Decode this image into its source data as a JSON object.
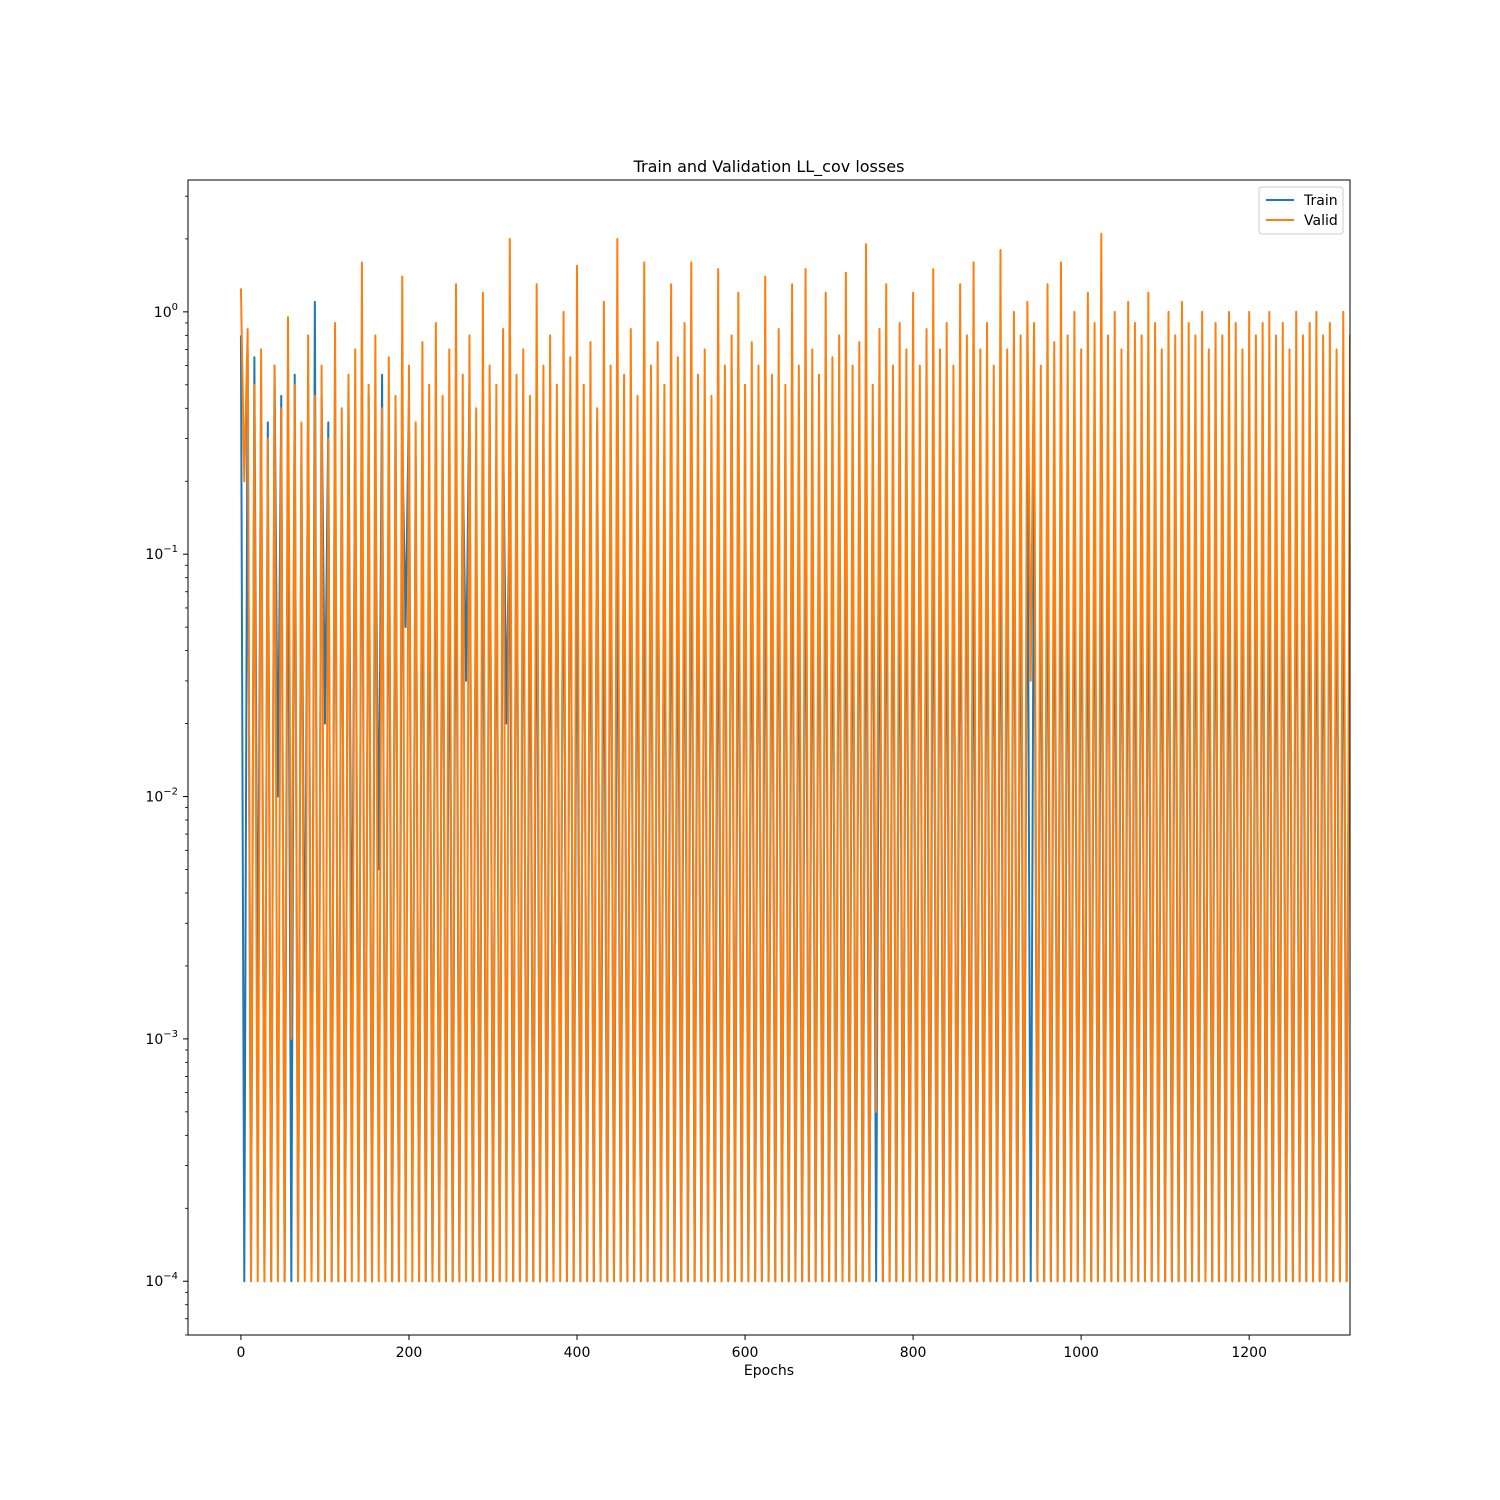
{
  "chart_data": {
    "type": "line",
    "title": "Train and Validation  LL_cov losses",
    "xlabel": "Epochs",
    "ylabel": "",
    "y_scale": "log",
    "xlim": [
      -63,
      1320
    ],
    "ylim": [
      6e-05,
      3.5
    ],
    "x_ticks": [
      0,
      200,
      400,
      600,
      800,
      1000,
      1200
    ],
    "x_tick_labels": [
      "0",
      "200",
      "400",
      "600",
      "800",
      "1000",
      "1200"
    ],
    "y_ticks": [
      0.0001,
      0.001,
      0.01,
      0.1,
      1
    ],
    "y_tick_labels": [
      {
        "base": "10",
        "exp": "−4"
      },
      {
        "base": "10",
        "exp": "−3"
      },
      {
        "base": "10",
        "exp": "−2"
      },
      {
        "base": "10",
        "exp": "−1"
      },
      {
        "base": "10",
        "exp": "0"
      }
    ],
    "legend_position": "top-right",
    "grid": false,
    "series": [
      {
        "name": "Train",
        "color": "#1f77b4",
        "x_start": 0,
        "x_step": 4,
        "values": [
          0.8,
          0.0001,
          0.7,
          0.0001,
          0.65,
          0.001,
          0.5,
          0.0001,
          0.35,
          0.0001,
          0.6,
          0.01,
          0.45,
          0.0001,
          0.3,
          0.0001,
          0.55,
          0.0001,
          0.25,
          0.001,
          0.5,
          0.0001,
          1.1,
          0.0001,
          0.45,
          0.02,
          0.35,
          0.0001,
          0.6,
          0.0001,
          0.3,
          0.0001,
          0.5,
          0.001,
          0.4,
          0.0001,
          0.75,
          0.0001,
          0.45,
          0.0001,
          0.25,
          0.005,
          0.55,
          0.0001,
          0.35,
          0.0001,
          0.4,
          0.0001,
          0.3,
          0.05,
          0.45,
          0.0002,
          0.25,
          0.0001,
          0.35,
          0.0001,
          0.2,
          0.0001,
          0.4,
          0.0001,
          0.3,
          0.0001,
          0.15,
          0.0001,
          0.35,
          0.0001,
          0.25,
          0.03,
          0.5,
          0.0001,
          0.2,
          0.0001,
          0.3,
          0.0001,
          0.45,
          0.0001,
          0.25,
          0.0001,
          0.35,
          0.02,
          0.2,
          0.0001,
          0.4,
          0.0001,
          0.3,
          0.0001,
          0.15,
          0.0001,
          0.25,
          0.0001,
          0.35,
          0.0001,
          0.2,
          0.0001,
          0.3,
          0.0004,
          0.25,
          0.0001,
          0.45,
          0.0001,
          0.2,
          0.0001,
          0.3,
          0.0001,
          0.25,
          0.0001,
          0.35,
          0.0001,
          0.15,
          0.0001,
          0.3,
          0.0001,
          0.2,
          0.0001,
          0.25,
          0.0001,
          0.35,
          0.0001,
          0.2,
          0.0001,
          0.3,
          0.0001,
          0.25,
          0.0001,
          0.4,
          0.0001,
          0.2,
          0.0001,
          0.3,
          0.0001,
          0.15,
          0.0001,
          0.25,
          0.0001,
          0.35,
          0.0001,
          0.2,
          0.0001,
          0.3,
          0.0001,
          0.25,
          0.0001,
          0.2,
          0.0001,
          0.3,
          0.0001,
          0.6,
          0.0001,
          0.25,
          0.0001,
          0.35,
          0.0001,
          0.2,
          0.0001,
          0.3,
          0.0001,
          0.25,
          0.0001,
          0.2,
          0.0001,
          0.3,
          0.0001,
          0.25,
          0.0001,
          0.35,
          0.0001,
          0.15,
          0.0001,
          0.3,
          0.0001,
          0.2,
          0.0001,
          0.25,
          0.0001,
          0.35,
          0.0001,
          0.2,
          0.0001,
          0.3,
          0.0001,
          0.25,
          0.0001,
          0.2,
          0.0001,
          0.3,
          0.0001,
          0.25,
          0.0001,
          0.35,
          0.0001,
          0.2,
          0.0001,
          0.3,
          0.0001,
          0.25,
          0.0001,
          0.2,
          0.0001,
          0.3,
          0.0001,
          0.25,
          0.0001,
          0.35,
          0.0001,
          0.2,
          0.0001,
          0.3,
          0.0001,
          0.25,
          0.0001,
          0.2,
          0.0001,
          0.3,
          0.0001,
          0.25,
          0.0001,
          0.35,
          0.0001,
          0.2,
          0.0001,
          0.3,
          0.0001,
          0.25,
          0.0001,
          0.2,
          0.0001,
          0.3,
          0.0001,
          0.25,
          0.0001,
          0.35,
          0.0001,
          0.2,
          0.0001,
          0.3,
          0.0001,
          0.25,
          0.0001,
          0.2,
          0.0001,
          0.3,
          0.0001,
          0.25,
          0.0001,
          0.35,
          0.0001,
          0.2,
          0.0001,
          0.3,
          0.0001,
          0.25,
          0.0001,
          0.2,
          0.0001,
          0.3,
          0.0001,
          0.25,
          0.0001,
          0.35,
          0.0001,
          0.2,
          0.0001,
          0.3,
          0.0001,
          0.25,
          0.0001,
          0.2,
          0.0001,
          0.3,
          0.0001,
          0.25,
          0.0001,
          0.35,
          0.0001,
          0.2,
          0.0001,
          0.3,
          0.0001,
          0.25,
          0.0001,
          0.2,
          0.0001,
          0.3,
          0.0001,
          0.25,
          0.0001,
          0.35,
          0.0001,
          0.2,
          0.0001,
          0.3,
          0.0001,
          0.25,
          0.0001,
          0.2,
          0.0001,
          0.3,
          0.0001,
          0.25,
          0.0001,
          0.35,
          0.0001,
          0.2,
          0.0001,
          0.3,
          0.0001,
          0.25,
          0.0001,
          0.2,
          0.0001,
          0.3,
          0.0001,
          0.25,
          0.0001,
          0.35,
          0.0001,
          0.2,
          0.0001,
          0.3,
          0.0001,
          0.25,
          0.0001,
          0.2,
          0.0001,
          0.3,
          0.0001,
          0.25,
          0.0001,
          0.2,
          0.0001,
          0.3,
          0.0001
        ]
      },
      {
        "name": "Valid",
        "color": "#ff7f0e",
        "x_start": 0,
        "x_step": 4,
        "values": [
          1.25,
          0.2,
          0.85,
          0.0001,
          0.5,
          0.0001,
          0.7,
          0.0001,
          0.3,
          0.0001,
          0.6,
          0.0001,
          0.4,
          0.0001,
          0.95,
          0.001,
          0.5,
          0.0001,
          0.35,
          0.0001,
          0.8,
          0.0001,
          0.45,
          0.0001,
          0.6,
          0.0001,
          0.3,
          0.0001,
          0.9,
          0.0001,
          0.4,
          0.0001,
          0.55,
          0.0001,
          0.7,
          0.0001,
          1.6,
          0.0001,
          0.5,
          0.0001,
          0.8,
          0.0001,
          0.4,
          0.0001,
          0.65,
          0.0001,
          0.45,
          0.0001,
          1.4,
          0.0001,
          0.6,
          0.0001,
          0.35,
          0.0001,
          0.75,
          0.0001,
          0.5,
          0.0001,
          0.9,
          0.0001,
          0.45,
          0.0001,
          0.7,
          0.0001,
          1.3,
          0.0001,
          0.55,
          0.0001,
          0.8,
          0.0001,
          0.4,
          0.0001,
          1.2,
          0.0001,
          0.6,
          0.0001,
          0.5,
          0.0001,
          0.85,
          0.0001,
          2.0,
          0.0001,
          0.55,
          0.0001,
          0.7,
          0.0001,
          0.45,
          0.0001,
          1.3,
          0.0001,
          0.6,
          0.0001,
          0.8,
          0.0001,
          0.5,
          0.0001,
          1.0,
          0.0001,
          0.65,
          0.0001,
          1.55,
          0.0001,
          0.5,
          0.0001,
          0.75,
          0.0001,
          0.4,
          0.0001,
          1.1,
          0.0001,
          0.6,
          0.0001,
          2.0,
          0.0001,
          0.55,
          0.0001,
          0.85,
          0.0001,
          0.45,
          0.0001,
          1.6,
          0.0001,
          0.6,
          0.0001,
          0.75,
          0.0001,
          0.5,
          0.0001,
          1.3,
          0.0001,
          0.65,
          0.0001,
          0.9,
          0.0001,
          1.6,
          0.0001,
          0.55,
          0.0001,
          0.7,
          0.0001,
          0.45,
          0.0001,
          1.5,
          0.0001,
          0.6,
          0.0001,
          0.8,
          0.0001,
          1.2,
          0.0001,
          0.5,
          0.0001,
          0.75,
          0.0001,
          0.6,
          0.0001,
          1.4,
          0.0001,
          0.55,
          0.0001,
          0.85,
          0.0001,
          0.5,
          0.0001,
          1.3,
          0.0001,
          0.6,
          0.0001,
          1.5,
          0.0001,
          0.7,
          0.0001,
          0.55,
          0.0001,
          1.2,
          0.0001,
          0.65,
          0.0001,
          0.8,
          0.0001,
          1.45,
          0.0001,
          0.6,
          0.0001,
          0.75,
          0.0001,
          1.9,
          0.0001,
          0.5,
          0.0005,
          0.85,
          0.0001,
          1.3,
          0.0001,
          0.6,
          0.0001,
          0.9,
          0.0001,
          0.7,
          0.0001,
          1.2,
          0.0001,
          0.6,
          0.0001,
          0.85,
          0.0001,
          1.5,
          0.0001,
          0.7,
          0.0001,
          0.9,
          0.0001,
          0.6,
          0.0001,
          1.3,
          0.0001,
          0.8,
          0.0001,
          1.6,
          0.0001,
          0.7,
          0.0001,
          0.9,
          0.0001,
          0.6,
          0.0001,
          1.8,
          0.0001,
          0.7,
          0.0001,
          1.0,
          0.0001,
          0.8,
          0.0001,
          1.1,
          0.03,
          0.9,
          0.0001,
          0.6,
          0.0001,
          1.3,
          0.0001,
          0.75,
          0.0001,
          1.6,
          0.0001,
          0.8,
          0.0001,
          1.0,
          0.0001,
          0.7,
          0.0001,
          1.2,
          0.0001,
          0.9,
          0.0001,
          2.1,
          0.0001,
          0.8,
          0.0001,
          1.0,
          0.0001,
          0.7,
          0.0001,
          1.1,
          0.0001,
          0.9,
          0.0001,
          0.8,
          0.0001,
          1.2,
          0.0001,
          0.9,
          0.0001,
          0.7,
          0.0001,
          1.0,
          0.0001,
          0.8,
          0.0001,
          1.1,
          0.0001,
          0.9,
          0.0001,
          0.8,
          0.0001,
          1.0,
          0.0001,
          0.7,
          0.0001,
          0.9,
          0.0001,
          0.8,
          0.0001,
          1.0,
          0.0001,
          0.9,
          0.0001,
          0.7,
          0.0001,
          1.0,
          0.0001,
          0.8,
          0.0001,
          0.9,
          0.0001,
          1.0,
          0.0001,
          0.8,
          0.0001,
          0.9,
          0.0001,
          0.7,
          0.0001,
          1.0,
          0.0001,
          0.8,
          0.0001,
          0.9,
          0.0001,
          1.0,
          0.0001,
          0.8,
          0.0001,
          0.9,
          0.0001,
          0.7,
          0.0001,
          1.0,
          0.0001,
          0.8,
          0.0001,
          0.9,
          0.0001,
          1.0,
          0.0001,
          0.8,
          0.0001,
          0.9,
          0.0001,
          1.0,
          0.0001,
          0.8,
          0.0001,
          0.9,
          0.0001,
          1.0
        ]
      }
    ]
  }
}
